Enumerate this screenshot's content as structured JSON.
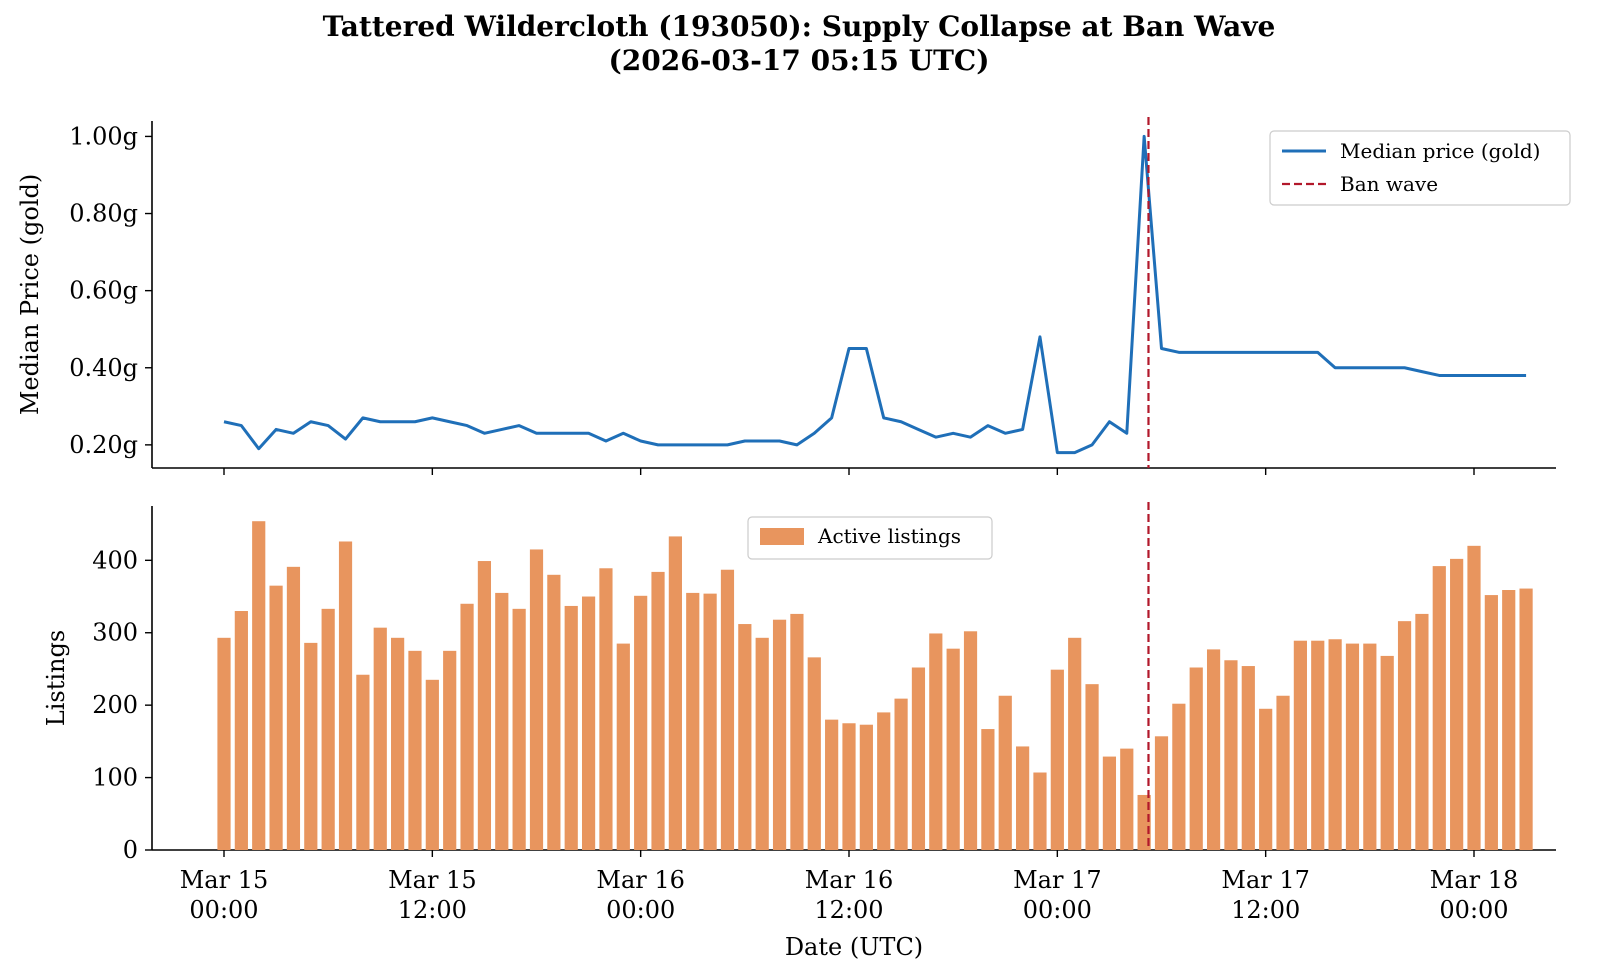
{
  "title": {
    "line1": "Tattered Wildercloth (193050): Supply Collapse at Ban Wave",
    "line2": "(2026-03-17 05:15 UTC)"
  },
  "colors": {
    "price_line": "#1f6fb8",
    "listings_bar": "#e8955e",
    "ban_wave": "#b2182b"
  },
  "chart_data": [
    {
      "type": "line",
      "panel": "top",
      "ylabel": "Median Price (gold)",
      "ylim": [
        0.14,
        1.04
      ],
      "yticks": [
        0.2,
        0.4,
        0.6,
        0.8,
        1.0
      ],
      "ytick_labels": [
        "0.20g",
        "0.40g",
        "0.60g",
        "0.80g",
        "1.00g"
      ],
      "grid": false,
      "legend_position": "top-right",
      "series": [
        {
          "name": "Median price (gold)",
          "x": [
            "2026-03-15 00:00",
            "2026-03-15 01:00",
            "2026-03-15 02:00",
            "2026-03-15 03:00",
            "2026-03-15 04:00",
            "2026-03-15 05:00",
            "2026-03-15 06:00",
            "2026-03-15 07:00",
            "2026-03-15 08:00",
            "2026-03-15 09:00",
            "2026-03-15 10:00",
            "2026-03-15 11:00",
            "2026-03-15 12:00",
            "2026-03-15 13:00",
            "2026-03-15 14:00",
            "2026-03-15 15:00",
            "2026-03-15 16:00",
            "2026-03-15 17:00",
            "2026-03-15 18:00",
            "2026-03-15 19:00",
            "2026-03-15 20:00",
            "2026-03-15 21:00",
            "2026-03-15 22:00",
            "2026-03-15 23:00",
            "2026-03-16 00:00",
            "2026-03-16 01:00",
            "2026-03-16 02:00",
            "2026-03-16 03:00",
            "2026-03-16 04:00",
            "2026-03-16 05:00",
            "2026-03-16 06:00",
            "2026-03-16 07:00",
            "2026-03-16 08:00",
            "2026-03-16 09:00",
            "2026-03-16 10:00",
            "2026-03-16 11:00",
            "2026-03-16 12:00",
            "2026-03-16 13:00",
            "2026-03-16 14:00",
            "2026-03-16 15:00",
            "2026-03-16 16:00",
            "2026-03-16 17:00",
            "2026-03-16 18:00",
            "2026-03-16 19:00",
            "2026-03-16 20:00",
            "2026-03-16 21:00",
            "2026-03-16 22:00",
            "2026-03-16 23:00",
            "2026-03-17 00:00",
            "2026-03-17 01:00",
            "2026-03-17 02:00",
            "2026-03-17 03:00",
            "2026-03-17 04:00",
            "2026-03-17 05:00",
            "2026-03-17 06:00",
            "2026-03-17 07:00",
            "2026-03-17 08:00",
            "2026-03-17 09:00",
            "2026-03-17 10:00",
            "2026-03-17 11:00",
            "2026-03-17 12:00",
            "2026-03-17 13:00",
            "2026-03-17 14:00",
            "2026-03-17 15:00",
            "2026-03-17 16:00",
            "2026-03-17 17:00",
            "2026-03-17 18:00",
            "2026-03-17 19:00",
            "2026-03-17 20:00",
            "2026-03-17 21:00",
            "2026-03-17 22:00",
            "2026-03-17 23:00",
            "2026-03-18 00:00",
            "2026-03-18 01:00",
            "2026-03-18 02:00",
            "2026-03-18 03:00"
          ],
          "values": [
            0.26,
            0.25,
            0.19,
            0.24,
            0.23,
            0.26,
            0.25,
            0.215,
            0.27,
            0.26,
            0.26,
            0.26,
            0.27,
            0.26,
            0.25,
            0.23,
            0.24,
            0.25,
            0.23,
            0.23,
            0.23,
            0.23,
            0.21,
            0.23,
            0.21,
            0.2,
            0.2,
            0.2,
            0.2,
            0.2,
            0.21,
            0.21,
            0.21,
            0.2,
            0.23,
            0.27,
            0.45,
            0.45,
            0.27,
            0.26,
            0.24,
            0.22,
            0.23,
            0.22,
            0.25,
            0.23,
            0.24,
            0.48,
            0.18,
            0.18,
            0.2,
            0.26,
            0.23,
            1.0,
            0.45,
            0.44,
            0.44,
            0.44,
            0.44,
            0.44,
            0.44,
            0.44,
            0.44,
            0.44,
            0.4,
            0.4,
            0.4,
            0.4,
            0.4,
            0.39,
            0.38,
            0.38,
            0.38,
            0.38,
            0.38,
            0.38
          ]
        }
      ],
      "annotation": {
        "label": "Ban wave",
        "x": "2026-03-17 05:15"
      }
    },
    {
      "type": "bar",
      "panel": "bottom",
      "ylabel": "Listings",
      "xlabel": "Date (UTC)",
      "ylim": [
        0,
        475
      ],
      "yticks": [
        0,
        100,
        200,
        300,
        400
      ],
      "ytick_labels": [
        "0",
        "100",
        "200",
        "300",
        "400"
      ],
      "grid": false,
      "legend_position": "top-center",
      "series": [
        {
          "name": "Active listings",
          "x": [
            "2026-03-15 00:00",
            "2026-03-15 01:00",
            "2026-03-15 02:00",
            "2026-03-15 03:00",
            "2026-03-15 04:00",
            "2026-03-15 05:00",
            "2026-03-15 06:00",
            "2026-03-15 07:00",
            "2026-03-15 08:00",
            "2026-03-15 09:00",
            "2026-03-15 10:00",
            "2026-03-15 11:00",
            "2026-03-15 12:00",
            "2026-03-15 13:00",
            "2026-03-15 14:00",
            "2026-03-15 15:00",
            "2026-03-15 16:00",
            "2026-03-15 17:00",
            "2026-03-15 18:00",
            "2026-03-15 19:00",
            "2026-03-15 20:00",
            "2026-03-15 21:00",
            "2026-03-15 22:00",
            "2026-03-15 23:00",
            "2026-03-16 00:00",
            "2026-03-16 01:00",
            "2026-03-16 02:00",
            "2026-03-16 03:00",
            "2026-03-16 04:00",
            "2026-03-16 05:00",
            "2026-03-16 06:00",
            "2026-03-16 07:00",
            "2026-03-16 08:00",
            "2026-03-16 09:00",
            "2026-03-16 10:00",
            "2026-03-16 11:00",
            "2026-03-16 12:00",
            "2026-03-16 13:00",
            "2026-03-16 14:00",
            "2026-03-16 15:00",
            "2026-03-16 16:00",
            "2026-03-16 17:00",
            "2026-03-16 18:00",
            "2026-03-16 19:00",
            "2026-03-16 20:00",
            "2026-03-16 21:00",
            "2026-03-16 22:00",
            "2026-03-16 23:00",
            "2026-03-17 00:00",
            "2026-03-17 01:00",
            "2026-03-17 02:00",
            "2026-03-17 03:00",
            "2026-03-17 04:00",
            "2026-03-17 05:00",
            "2026-03-17 06:00",
            "2026-03-17 07:00",
            "2026-03-17 08:00",
            "2026-03-17 09:00",
            "2026-03-17 10:00",
            "2026-03-17 11:00",
            "2026-03-17 12:00",
            "2026-03-17 13:00",
            "2026-03-17 14:00",
            "2026-03-17 15:00",
            "2026-03-17 16:00",
            "2026-03-17 17:00",
            "2026-03-17 18:00",
            "2026-03-17 19:00",
            "2026-03-17 20:00",
            "2026-03-17 21:00",
            "2026-03-17 22:00",
            "2026-03-17 23:00",
            "2026-03-18 00:00",
            "2026-03-18 01:00",
            "2026-03-18 02:00",
            "2026-03-18 03:00"
          ],
          "values": [
            293,
            330,
            454,
            365,
            391,
            286,
            333,
            426,
            242,
            307,
            293,
            275,
            235,
            275,
            340,
            399,
            355,
            333,
            415,
            380,
            337,
            350,
            389,
            285,
            351,
            384,
            433,
            355,
            354,
            387,
            312,
            293,
            318,
            326,
            266,
            180,
            175,
            173,
            190,
            209,
            252,
            299,
            278,
            302,
            167,
            213,
            143,
            107,
            249,
            293,
            229,
            129,
            140,
            76,
            157,
            202,
            252,
            277,
            262,
            254,
            195,
            213,
            289,
            289,
            291,
            285,
            285,
            268,
            316,
            326,
            392,
            402,
            420,
            352,
            359,
            361
          ]
        }
      ],
      "annotation": {
        "label": "Ban wave",
        "x": "2026-03-17 05:15"
      }
    }
  ],
  "x_axis": {
    "label": "Date (UTC)",
    "ticks": [
      {
        "x": "2026-03-15 00:00",
        "line1": "Mar 15",
        "line2": "00:00"
      },
      {
        "x": "2026-03-15 12:00",
        "line1": "Mar 15",
        "line2": "12:00"
      },
      {
        "x": "2026-03-16 00:00",
        "line1": "Mar 16",
        "line2": "00:00"
      },
      {
        "x": "2026-03-16 12:00",
        "line1": "Mar 16",
        "line2": "12:00"
      },
      {
        "x": "2026-03-17 00:00",
        "line1": "Mar 17",
        "line2": "00:00"
      },
      {
        "x": "2026-03-17 12:00",
        "line1": "Mar 17",
        "line2": "12:00"
      },
      {
        "x": "2026-03-18 00:00",
        "line1": "Mar 18",
        "line2": "00:00"
      }
    ]
  }
}
